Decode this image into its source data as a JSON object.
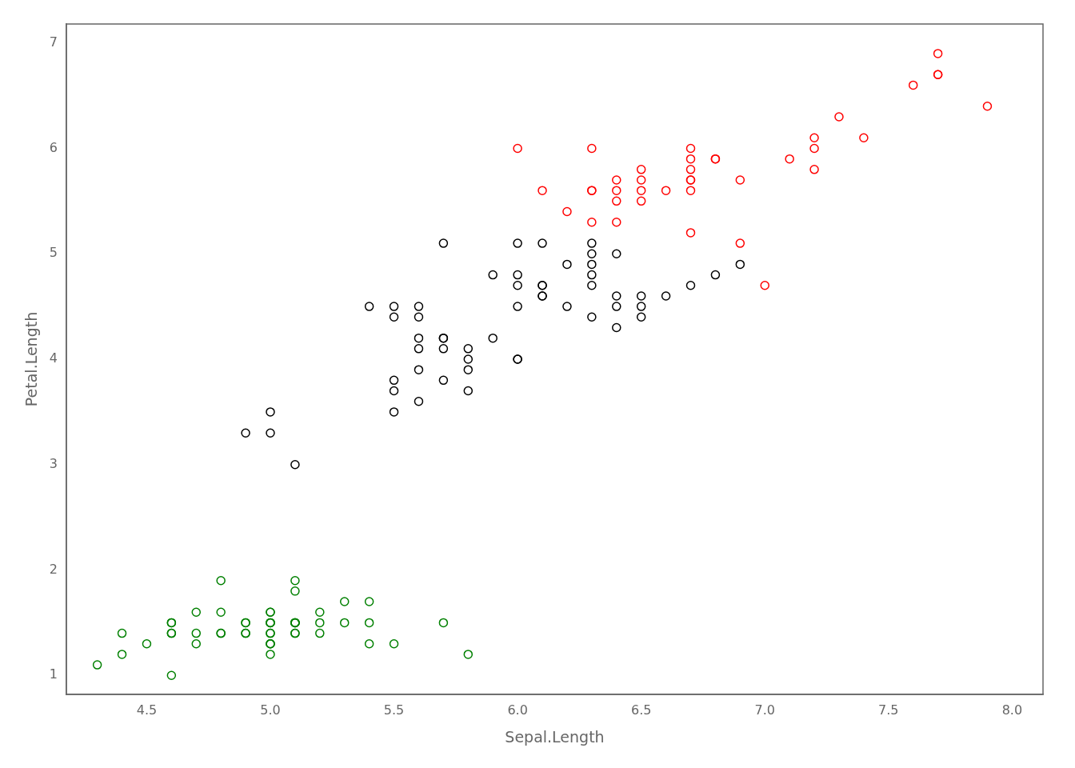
{
  "chart_data": {
    "type": "scatter",
    "xlabel": "Sepal.Length",
    "ylabel": "Petal.Length",
    "xlim": [
      4.175,
      8.125
    ],
    "ylim": [
      0.82,
      7.18
    ],
    "xticks": [
      4.5,
      {
        "value": 5.0,
        "label": "5.0"
      },
      5.5,
      {
        "value": 6.0,
        "label": "6.0"
      },
      6.5,
      {
        "value": 7.0,
        "label": "7.0"
      },
      7.5,
      {
        "value": 8.0,
        "label": "8.0"
      }
    ],
    "yticks": [
      1,
      2,
      3,
      4,
      5,
      6,
      7
    ],
    "grid": false,
    "marker": "circle",
    "series": [
      {
        "color": "green",
        "values": [
          [
            4.3,
            1.1
          ],
          [
            4.4,
            1.2
          ],
          [
            4.4,
            1.4
          ],
          [
            4.5,
            1.3
          ],
          [
            4.6,
            1.4
          ],
          [
            4.6,
            1.4
          ],
          [
            4.6,
            1.5
          ],
          [
            4.7,
            1.3
          ],
          [
            4.7,
            1.6
          ],
          [
            4.8,
            1.4
          ],
          [
            4.8,
            1.6
          ],
          [
            4.8,
            1.9
          ],
          [
            4.9,
            1.4
          ],
          [
            4.9,
            1.5
          ],
          [
            4.9,
            1.5
          ],
          [
            5.0,
            1.2
          ],
          [
            5.0,
            1.3
          ],
          [
            5.0,
            1.3
          ],
          [
            5.0,
            1.5
          ],
          [
            5.0,
            1.5
          ],
          [
            5.0,
            1.6
          ],
          [
            5.0,
            1.6
          ],
          [
            5.1,
            1.4
          ],
          [
            5.1,
            1.5
          ],
          [
            5.1,
            1.5
          ],
          [
            5.1,
            1.5
          ],
          [
            5.1,
            1.9
          ],
          [
            5.2,
            1.4
          ],
          [
            5.2,
            1.5
          ],
          [
            5.3,
            1.5
          ],
          [
            5.4,
            1.3
          ],
          [
            5.4,
            1.5
          ],
          [
            5.4,
            1.7
          ],
          [
            5.5,
            1.3
          ],
          [
            5.7,
            1.5
          ],
          [
            5.8,
            1.2
          ],
          [
            4.6,
            1.0
          ],
          [
            4.8,
            1.4
          ],
          [
            5.0,
            1.4
          ],
          [
            5.0,
            1.3
          ],
          [
            5.1,
            1.4
          ],
          [
            4.9,
            1.4
          ],
          [
            5.2,
            1.6
          ],
          [
            5.0,
            1.4
          ],
          [
            5.1,
            1.8
          ],
          [
            5.3,
            1.7
          ],
          [
            5.1,
            1.5
          ],
          [
            4.7,
            1.4
          ],
          [
            5.0,
            1.5
          ],
          [
            4.6,
            1.5
          ]
        ]
      },
      {
        "color": "black",
        "values": [
          [
            4.9,
            3.3
          ],
          [
            5.0,
            3.5
          ],
          [
            5.0,
            3.3
          ],
          [
            5.1,
            3.0
          ],
          [
            5.5,
            3.5
          ],
          [
            5.4,
            4.5
          ],
          [
            5.5,
            4.4
          ],
          [
            5.5,
            3.7
          ],
          [
            5.5,
            3.8
          ],
          [
            5.5,
            4.5
          ],
          [
            5.6,
            3.6
          ],
          [
            5.6,
            4.1
          ],
          [
            5.6,
            4.4
          ],
          [
            5.6,
            4.5
          ],
          [
            5.6,
            3.9
          ],
          [
            5.7,
            3.8
          ],
          [
            5.7,
            4.1
          ],
          [
            5.7,
            4.2
          ],
          [
            5.7,
            4.2
          ],
          [
            5.7,
            5.1
          ],
          [
            5.8,
            4.0
          ],
          [
            5.8,
            3.7
          ],
          [
            5.8,
            4.1
          ],
          [
            5.9,
            4.2
          ],
          [
            5.9,
            4.8
          ],
          [
            6.0,
            4.0
          ],
          [
            6.0,
            4.0
          ],
          [
            6.0,
            4.5
          ],
          [
            6.0,
            5.1
          ],
          [
            6.0,
            4.8
          ],
          [
            6.1,
            4.7
          ],
          [
            6.1,
            4.6
          ],
          [
            6.1,
            4.7
          ],
          [
            6.1,
            5.1
          ],
          [
            6.1,
            4.6
          ],
          [
            6.2,
            4.5
          ],
          [
            6.2,
            4.9
          ],
          [
            6.3,
            4.9
          ],
          [
            6.3,
            5.0
          ],
          [
            6.4,
            4.3
          ],
          [
            6.4,
            4.5
          ],
          [
            6.4,
            4.6
          ],
          [
            6.4,
            5.0
          ],
          [
            6.5,
            4.4
          ],
          [
            6.5,
            4.6
          ],
          [
            6.6,
            4.6
          ],
          [
            6.7,
            4.7
          ],
          [
            6.8,
            4.8
          ],
          [
            6.9,
            4.9
          ],
          [
            5.6,
            4.2
          ],
          [
            5.8,
            3.9
          ],
          [
            6.0,
            4.7
          ],
          [
            6.3,
            4.4
          ],
          [
            6.3,
            4.7
          ],
          [
            6.3,
            4.8
          ],
          [
            6.3,
            5.1
          ],
          [
            6.5,
            4.5
          ]
        ]
      },
      {
        "color": "red",
        "values": [
          [
            6.0,
            6.0
          ],
          [
            6.1,
            5.6
          ],
          [
            6.3,
            5.6
          ],
          [
            6.3,
            5.6
          ],
          [
            6.3,
            6.0
          ],
          [
            6.4,
            5.3
          ],
          [
            6.4,
            5.5
          ],
          [
            6.4,
            5.7
          ],
          [
            6.5,
            5.5
          ],
          [
            6.5,
            5.7
          ],
          [
            6.5,
            5.8
          ],
          [
            6.7,
            5.2
          ],
          [
            6.7,
            5.7
          ],
          [
            6.7,
            5.7
          ],
          [
            6.7,
            5.8
          ],
          [
            6.7,
            5.9
          ],
          [
            6.7,
            6.0
          ],
          [
            6.8,
            5.9
          ],
          [
            6.9,
            5.1
          ],
          [
            6.9,
            5.7
          ],
          [
            7.0,
            4.7
          ],
          [
            7.1,
            5.9
          ],
          [
            7.2,
            5.8
          ],
          [
            7.2,
            6.0
          ],
          [
            7.3,
            6.3
          ],
          [
            7.4,
            6.1
          ],
          [
            7.6,
            6.6
          ],
          [
            7.7,
            6.7
          ],
          [
            7.7,
            6.9
          ],
          [
            7.9,
            6.4
          ],
          [
            6.3,
            5.3
          ],
          [
            6.2,
            5.4
          ],
          [
            6.4,
            5.6
          ],
          [
            6.5,
            5.6
          ],
          [
            6.6,
            5.6
          ],
          [
            6.7,
            5.6
          ],
          [
            6.8,
            5.9
          ],
          [
            7.2,
            6.1
          ],
          [
            7.7,
            6.7
          ]
        ]
      }
    ]
  }
}
